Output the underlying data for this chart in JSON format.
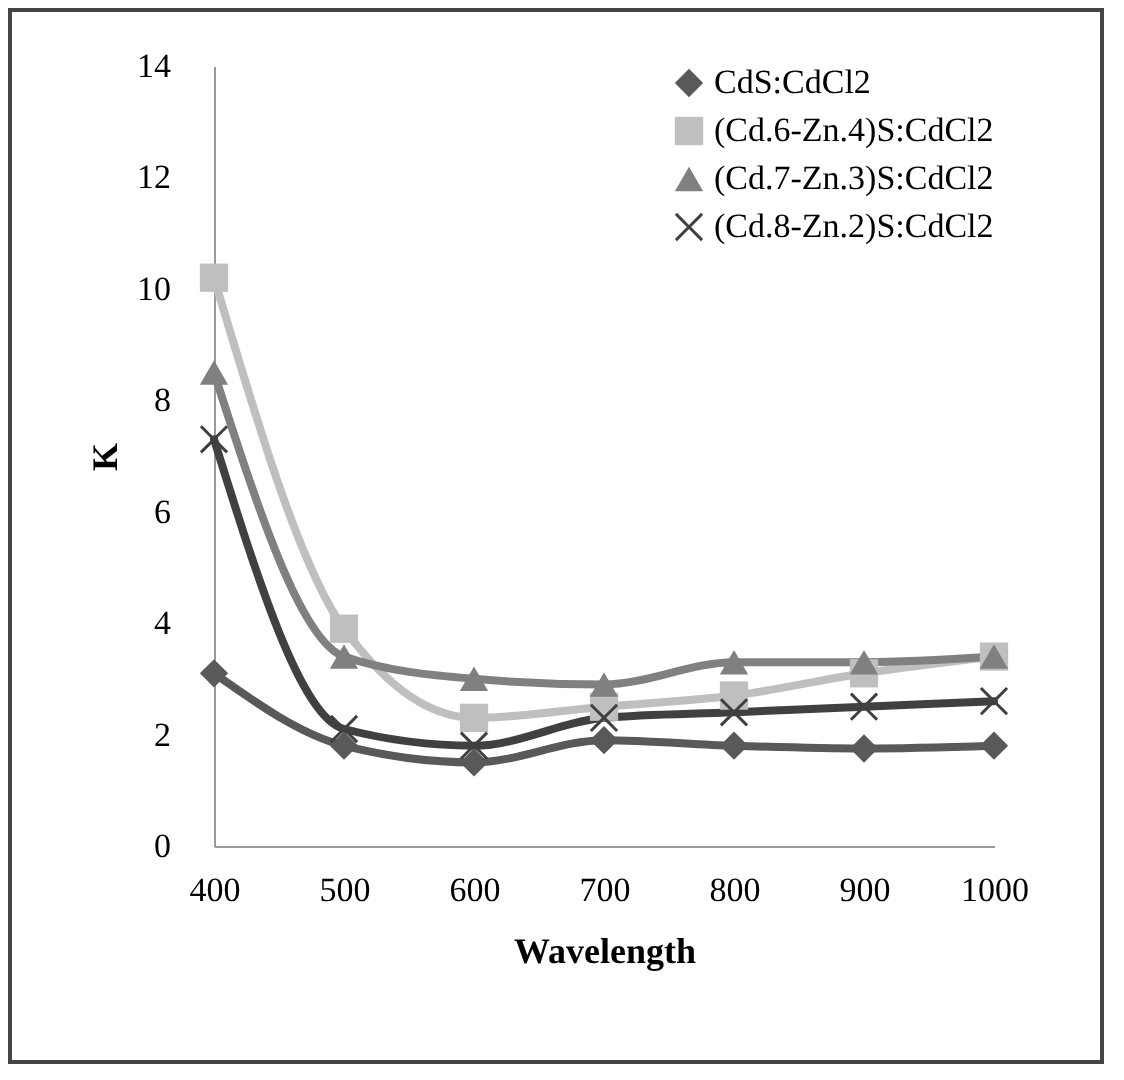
{
  "chart_data": {
    "type": "line",
    "xlabel": "Wavelength",
    "ylabel": "K",
    "categories": [
      "400",
      "500",
      "600",
      "700",
      "800",
      "900",
      "1000"
    ],
    "series": [
      {
        "name": "CdS:CdCl2",
        "color": "#595959",
        "marker": "diamond",
        "values": [
          3.1,
          1.8,
          1.5,
          1.9,
          1.8,
          1.75,
          1.8
        ]
      },
      {
        "name": "(Cd.6-Zn.4)S:CdCl2",
        "color": "#bfbfbf",
        "marker": "square",
        "values": [
          10.2,
          3.9,
          2.3,
          2.5,
          2.7,
          3.1,
          3.4
        ]
      },
      {
        "name": "(Cd.7-Zn.3)S:CdCl2",
        "color": "#808080",
        "marker": "triangle",
        "values": [
          8.5,
          3.4,
          3.0,
          2.9,
          3.3,
          3.3,
          3.4
        ]
      },
      {
        "name": "(Cd.8-Zn.2)S:CdCl2",
        "color": "#404040",
        "marker": "cross",
        "values": [
          7.3,
          2.1,
          1.8,
          2.3,
          2.4,
          2.5,
          2.6
        ]
      }
    ],
    "ylim": [
      0,
      14
    ],
    "yticks": [
      0,
      2,
      4,
      6,
      8,
      10,
      12,
      14
    ],
    "grid": false,
    "legend": "top right"
  }
}
